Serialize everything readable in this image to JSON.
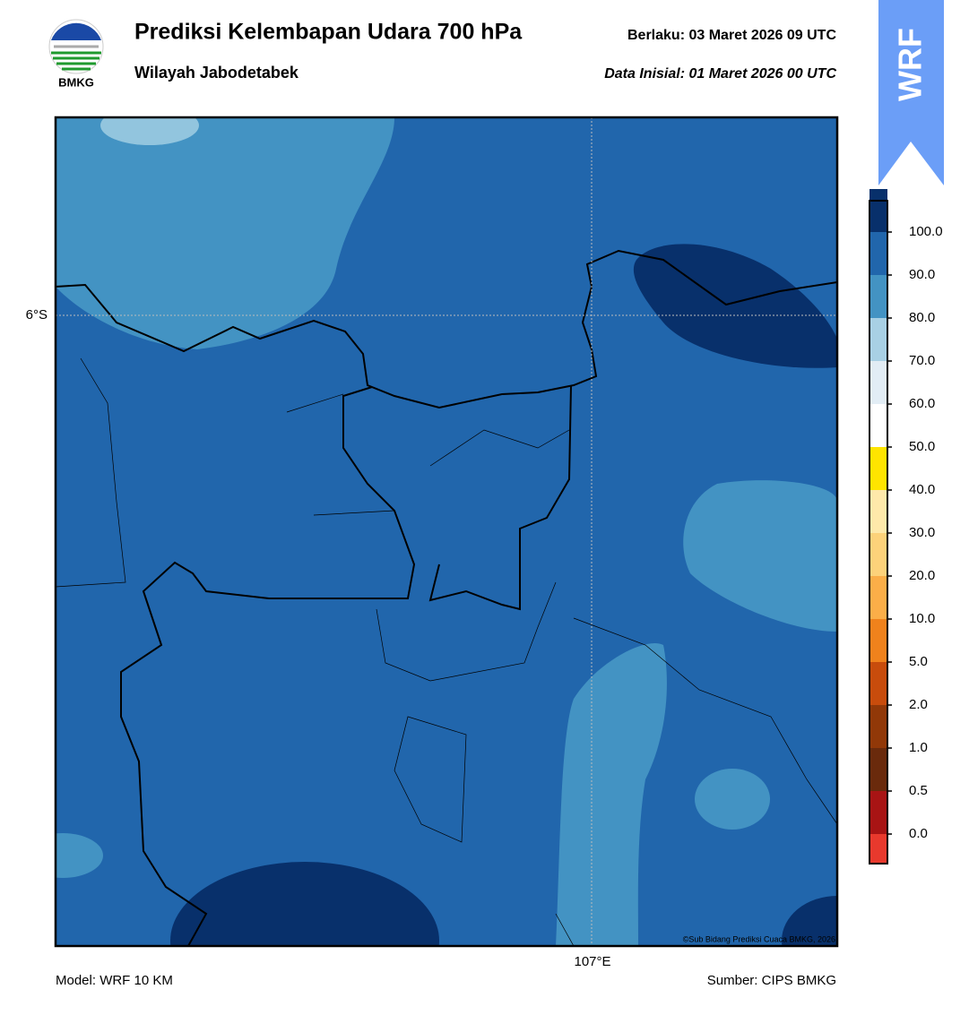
{
  "header": {
    "logo_text": "BMKG",
    "title": "Prediksi Kelembapan Udara 700 hPa",
    "subtitle": "Wilayah Jabodetabek",
    "valid": "Berlaku:  03 Maret 2026 09 UTC",
    "initial": "Data Inisial:  01 Maret 2026 00 UTC",
    "badge": "WRF"
  },
  "map": {
    "lat_label": "6°S",
    "lon_label": "107°E",
    "credit": "©Sub Bidang Prediksi Cuaca BMKG, 2026"
  },
  "colorbar": {
    "colors": [
      "#e8392d",
      "#a81414",
      "#6a2a0c",
      "#913808",
      "#c84c0c",
      "#f0821c",
      "#fbae48",
      "#fdd27a",
      "#fee9aa",
      "#ffe400",
      "#ffffff",
      "#e2edf5",
      "#a8d0e4",
      "#4393c3",
      "#2166ac",
      "#08306b",
      "#2d0a4e"
    ],
    "labels": [
      "0.0",
      "0.5",
      "1.0",
      "2.0",
      "5.0",
      "10.0",
      "20.0",
      "30.0",
      "40.0",
      "50.0",
      "60.0",
      "70.0",
      "80.0",
      "90.0",
      "100.0"
    ]
  },
  "footer": {
    "model": "Model: WRF 10 KM",
    "source": "Sumber: CIPS BMKG"
  }
}
